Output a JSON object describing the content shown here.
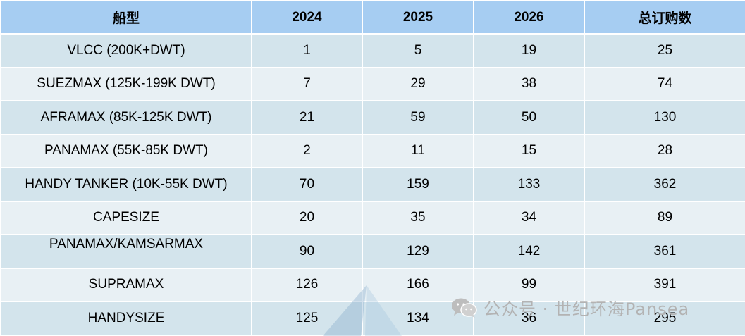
{
  "table": {
    "headers": [
      "船型",
      "2024",
      "2025",
      "2026",
      "总订购数"
    ],
    "rows": [
      {
        "type": "VLCC (200K+DWT)",
        "y2024": "1",
        "y2025": "5",
        "y2026": "19",
        "total": "25"
      },
      {
        "type": "SUEZMAX (125K-199K DWT)",
        "y2024": "7",
        "y2025": "29",
        "y2026": "38",
        "total": "74"
      },
      {
        "type": "AFRAMAX (85K-125K DWT)",
        "y2024": "21",
        "y2025": "59",
        "y2026": "50",
        "total": "130"
      },
      {
        "type": "PANAMAX (55K-85K DWT)",
        "y2024": "2",
        "y2025": "11",
        "y2026": "15",
        "total": "28"
      },
      {
        "type": "HANDY TANKER (10K-55K DWT)",
        "y2024": "70",
        "y2025": "159",
        "y2026": "133",
        "total": "362"
      },
      {
        "type": "CAPESIZE",
        "y2024": "20",
        "y2025": "35",
        "y2026": "34",
        "total": "89"
      },
      {
        "type": "PANAMAX/KAMSARMAX",
        "y2024": "90",
        "y2025": "129",
        "y2026": "142",
        "total": "361"
      },
      {
        "type": "SUPRAMAX",
        "y2024": "126",
        "y2025": "166",
        "y2026": "99",
        "total": "391"
      },
      {
        "type": "HANDYSIZE",
        "y2024": "125",
        "y2025": "134",
        "y2026": "36",
        "total": "295"
      }
    ]
  },
  "watermark": {
    "text": "公众号 · 世纪环海Pansea",
    "icon": "wechat-icon"
  },
  "colors": {
    "header_bg": "#a6cdf2",
    "row_dark": "#d3e4ec",
    "row_light": "#e8f0f4"
  }
}
